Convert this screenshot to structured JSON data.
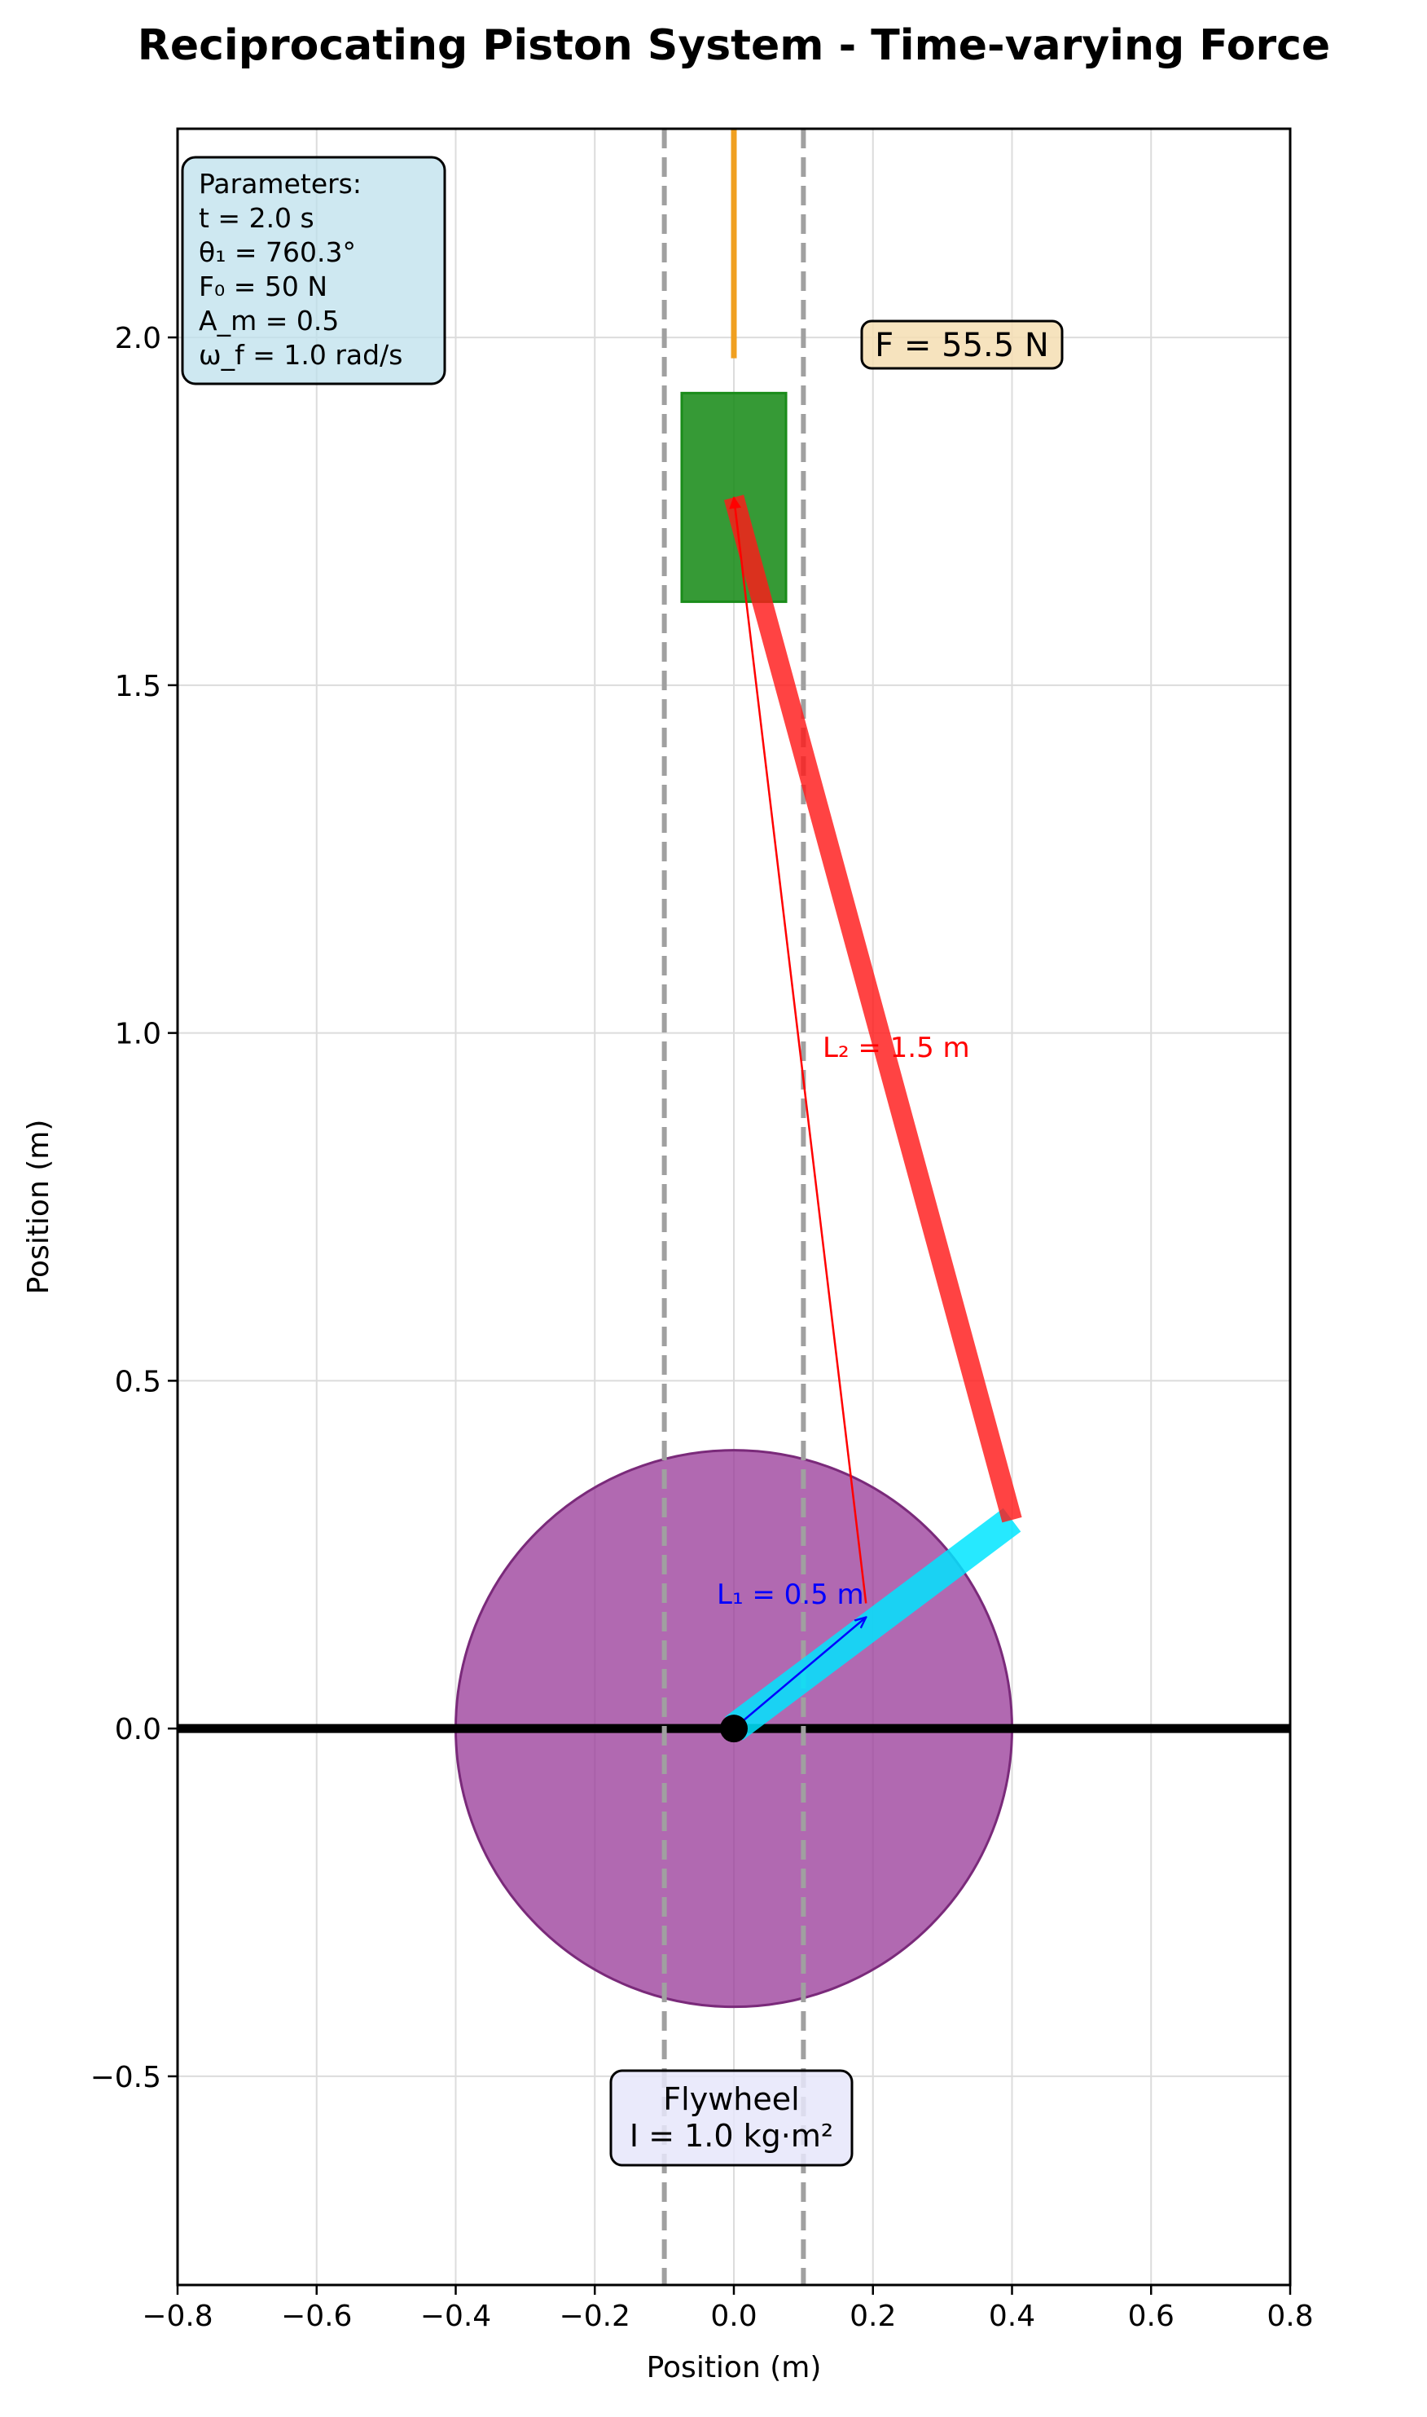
{
  "title": "Reciprocating Piston System - Time-varying Force",
  "axes": {
    "xlabel": "Position (m)",
    "ylabel": "Position (m)",
    "xlim": [
      -0.8,
      0.8
    ],
    "ylim": [
      -0.8,
      2.3
    ],
    "xticks": [
      "−0.8",
      "−0.6",
      "−0.4",
      "−0.2",
      "0.0",
      "0.2",
      "0.4",
      "0.6",
      "0.8"
    ],
    "yticks": [
      "−0.5",
      "0.0",
      "0.5",
      "1.0",
      "1.5",
      "2.0"
    ],
    "grid": true
  },
  "parameters_box": {
    "lines": [
      "Parameters:",
      "t = 2.0 s",
      "θ₁ = 760.3°",
      "F₀ = 50 N",
      "A_m = 0.5",
      "ω_f = 1.0 rad/s"
    ]
  },
  "force_label": "F = 55.5 N",
  "flywheel_label": {
    "line1": "Flywheel",
    "line2": "I = 1.0 kg·m²"
  },
  "link_labels": {
    "connecting_rod": "L₂ = 1.5 m",
    "crank": "L₁ = 0.5 m"
  },
  "colors": {
    "flywheel": "#9b3f9b",
    "crank": "#00e5ff",
    "connecting_rod": "#ff1a1a",
    "piston": "#1a8c1a",
    "piston_rod": "#f0a020",
    "cylinder_walls": "#a0a0a0",
    "param_box": "#bde0ec",
    "force_box": "#f5deb3",
    "flywheel_box": "#e6e6fa"
  },
  "mechanism": {
    "flywheel_radius": 0.4,
    "crank_pivot": [
      0,
      0
    ],
    "crank_end": [
      0.4,
      0.3
    ],
    "piston_pin": [
      0.0,
      1.77
    ],
    "piston_width": 0.15,
    "piston_height": 0.3,
    "piston_center_y": 1.77,
    "piston_rod_top": 2.3,
    "piston_rod_bottom": 1.97,
    "cylinder_walls_x": [
      -0.1,
      0.1
    ],
    "L1_arrow": [
      [
        0,
        0
      ],
      [
        0.19,
        0.16
      ]
    ],
    "L2_arrow": [
      [
        0.19,
        0.18
      ],
      [
        0.0,
        1.77
      ]
    ]
  }
}
